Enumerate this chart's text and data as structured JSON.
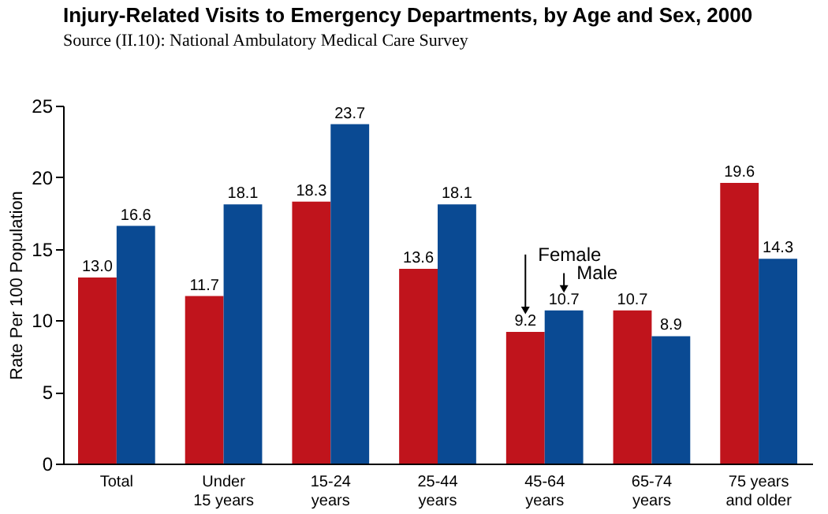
{
  "chart_data": {
    "type": "bar",
    "title": "Injury-Related Visits to Emergency Departments, by Age and Sex, 2000",
    "subtitle": "Source (II.10):  National Ambulatory Medical Care Survey",
    "ylabel": "Rate Per 100 Population",
    "categories": [
      "Total",
      "Under\n15 years",
      "15-24\nyears",
      "25-44\nyears",
      "45-64\nyears",
      "65-74\nyears",
      "75 years\nand older"
    ],
    "series": [
      {
        "name": "Female",
        "color": "#c0141c",
        "values": [
          13.0,
          11.7,
          18.3,
          13.6,
          9.2,
          10.7,
          19.6
        ],
        "value_labels": [
          "13.0",
          "11.7",
          "18.3",
          "13.6",
          "9.2",
          "10.7",
          "19.6"
        ]
      },
      {
        "name": "Male",
        "color": "#0a4a93",
        "values": [
          16.6,
          18.1,
          23.7,
          18.1,
          10.7,
          8.9,
          14.3
        ],
        "value_labels": [
          "16.6",
          "18.1",
          "23.7",
          "18.1",
          "10.7",
          "8.9",
          "14.3"
        ]
      }
    ],
    "ylim": [
      0,
      25
    ],
    "yticks": [
      0,
      5,
      10,
      15,
      20,
      25
    ],
    "grid": false,
    "legend": false
  }
}
